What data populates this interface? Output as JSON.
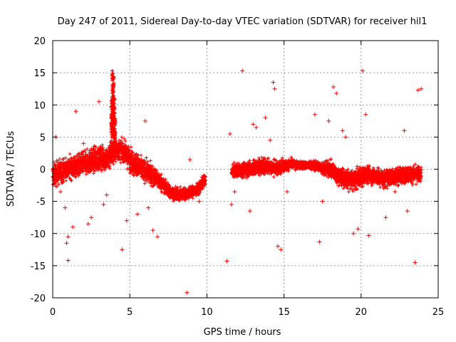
{
  "chart_data": {
    "type": "scatter",
    "title": "Day 247 of 2011, Sidereal Day-to-day VTEC variation (SDTVAR) for receiver hil1",
    "xlabel": "GPS time / hours",
    "ylabel": "SDTVAR / TECUs",
    "xlim": [
      0,
      25
    ],
    "ylim": [
      -20,
      20
    ],
    "xticks": [
      0,
      5,
      10,
      15,
      20,
      25
    ],
    "yticks": [
      -20,
      -15,
      -10,
      -5,
      0,
      5,
      10,
      15,
      20
    ],
    "xtick_labels": [
      "0",
      "5",
      "10",
      "15",
      "20",
      "25"
    ],
    "ytick_labels": [
      "-20",
      "-15",
      "-10",
      "-5",
      "0",
      "5",
      "10",
      "15",
      "20"
    ],
    "grid": true,
    "marker": "+",
    "color": "#ff0000",
    "band_segments": [
      {
        "x": [
          0.0,
          0.4,
          0.8,
          1.2,
          1.6,
          2.0,
          2.4,
          2.8,
          3.2,
          3.5,
          3.7,
          4.0,
          4.3,
          4.6,
          5.0,
          5.4,
          5.8,
          6.2,
          6.6,
          7.0,
          7.4,
          7.8,
          8.2,
          8.6,
          9.0,
          9.4,
          9.9
        ],
        "center": [
          -1.0,
          -0.5,
          0.0,
          0.3,
          0.6,
          0.8,
          1.2,
          1.5,
          1.8,
          1.5,
          2.2,
          2.8,
          3.0,
          2.8,
          1.5,
          0.8,
          0.0,
          -0.5,
          -1.2,
          -2.0,
          -3.0,
          -3.8,
          -4.0,
          -3.8,
          -3.6,
          -3.2,
          -1.5
        ],
        "spread": [
          3.0,
          3.0,
          2.8,
          2.8,
          2.8,
          2.8,
          3.0,
          3.0,
          3.0,
          3.0,
          3.5,
          3.0,
          2.5,
          2.5,
          3.0,
          3.0,
          2.8,
          2.5,
          2.5,
          2.0,
          1.8,
          1.5,
          1.5,
          1.5,
          1.5,
          1.5,
          1.5
        ]
      },
      {
        "x": [
          11.6,
          12.0,
          12.5,
          13.0,
          13.5,
          14.0,
          14.5,
          15.0,
          15.5,
          16.0,
          16.5,
          17.0,
          17.5,
          18.0,
          18.5,
          19.0,
          19.5,
          20.0,
          20.5,
          21.0,
          21.5,
          22.0,
          22.5,
          23.0,
          23.5,
          23.9
        ],
        "center": [
          -0.5,
          -0.2,
          0.0,
          0.2,
          0.4,
          0.5,
          0.2,
          0.5,
          0.8,
          0.6,
          0.6,
          0.6,
          0.2,
          0.0,
          -1.0,
          -1.5,
          -1.8,
          -1.2,
          -0.8,
          -1.2,
          -1.5,
          -1.2,
          -1.0,
          -0.8,
          -0.8,
          -0.8
        ],
        "spread": [
          1.5,
          1.8,
          1.8,
          2.0,
          2.0,
          2.0,
          1.8,
          1.5,
          1.2,
          1.0,
          1.0,
          1.2,
          1.5,
          2.0,
          2.2,
          2.5,
          2.5,
          2.5,
          2.2,
          2.2,
          2.2,
          2.2,
          2.0,
          2.0,
          2.0,
          2.0
        ]
      }
    ],
    "spike": {
      "x": [
        3.8,
        3.85,
        3.9,
        3.95,
        4.0,
        4.05
      ],
      "y_min": [
        2.0,
        5.0,
        6.0,
        5.0,
        3.0,
        2.5
      ],
      "y_max": [
        12.0,
        15.5,
        15.0,
        14.5,
        11.0,
        8.0
      ]
    },
    "outliers": {
      "x": [
        0.2,
        0.5,
        0.8,
        1.0,
        1.3,
        1.5,
        2.0,
        2.3,
        2.5,
        3.0,
        3.3,
        3.5,
        4.5,
        4.8,
        5.5,
        6.0,
        6.2,
        6.5,
        6.8,
        8.7,
        8.9,
        9.5,
        11.3,
        11.6,
        11.8,
        12.3,
        13.2,
        13.8,
        14.1,
        14.3,
        14.4,
        14.6,
        14.8,
        15.2,
        17.3,
        17.9,
        18.2,
        19.0,
        20.1,
        20.3,
        23.5,
        23.7,
        23.9,
        1.0,
        0.9,
        11.5,
        13.0,
        12.8,
        17.0,
        17.5,
        18.4,
        18.8,
        19.5,
        19.8,
        20.5,
        21.6,
        22.2,
        22.8,
        23.0
      ],
      "y": [
        5.0,
        -3.5,
        -6.0,
        -10.5,
        -9.0,
        9.0,
        4.0,
        -8.5,
        -7.5,
        10.5,
        -5.5,
        -4.0,
        -12.5,
        -8.0,
        -7.0,
        7.5,
        -6.0,
        -9.5,
        -10.5,
        -19.2,
        1.5,
        -5.0,
        -14.3,
        -5.5,
        -3.5,
        15.3,
        6.5,
        8.0,
        4.5,
        13.5,
        12.5,
        -12.0,
        -12.5,
        -3.5,
        -11.3,
        7.5,
        12.8,
        5.0,
        15.3,
        8.5,
        -14.5,
        12.3,
        12.5,
        -14.2,
        -11.5,
        5.5,
        7.0,
        -6.5,
        8.5,
        -5.0,
        11.8,
        6.0,
        -10.0,
        -9.3,
        -10.3,
        -7.5,
        -3.5,
        6.0,
        -6.5
      ]
    }
  }
}
